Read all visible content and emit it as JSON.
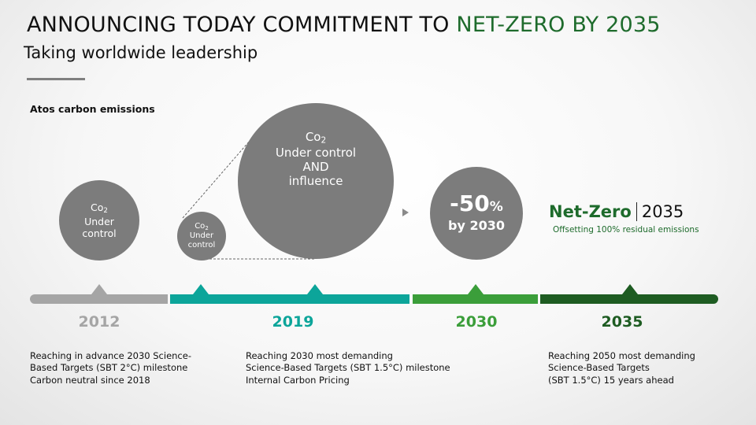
{
  "header": {
    "title_main": "ANNOUNCING TODAY COMMITMENT TO ",
    "title_highlight": "NET-ZERO BY 2035",
    "subtitle": "Taking worldwide leadership"
  },
  "chart_label": "Atos carbon emissions",
  "circles": {
    "c2012": {
      "co": "Co",
      "sub": "2",
      "line1": "Under",
      "line2": "control"
    },
    "c2019_small": {
      "co": "Co",
      "sub": "2",
      "line1": "Under",
      "line2": "control"
    },
    "c2019_big": {
      "co": "Co",
      "sub": "2",
      "line1": "Under control",
      "line2": "AND",
      "line3": "influence"
    },
    "c2030": {
      "value": "-50",
      "unit": "%",
      "by": "by 2030"
    }
  },
  "netzero": {
    "label": "Net-Zero",
    "year": "2035",
    "note": "Offsetting 100% residual emissions"
  },
  "timeline": {
    "years": [
      "2012",
      "2019",
      "2030",
      "2035"
    ]
  },
  "descriptions": {
    "d2012": [
      "Reaching in advance 2030 Science-",
      "Based Targets (SBT 2°C) milestone",
      "Carbon neutral since 2018"
    ],
    "d2019": [
      "Reaching 2030 most demanding",
      "Science-Based Targets (SBT 1.5°C) milestone",
      "Internal Carbon Pricing"
    ],
    "d2035": [
      "Reaching 2050 most demanding",
      "Science-Based Targets",
      "(SBT 1.5°C) 15 years ahead"
    ]
  },
  "colors": {
    "grey": "#a5a5a5",
    "teal": "#0ca59a",
    "green": "#3b9e3a",
    "dark_green": "#1e5c22",
    "circle_grey": "#7c7c7c"
  }
}
